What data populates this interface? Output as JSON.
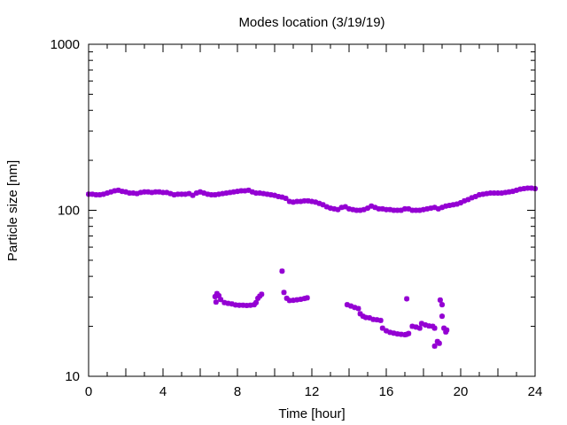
{
  "chart_data": {
    "type": "scatter",
    "title": "Modes location (3/19/19)",
    "xlabel": "Time [hour]",
    "ylabel": "Particle size [nm]",
    "xlim": [
      0,
      24
    ],
    "ylim": [
      10,
      1000
    ],
    "yscale": "log",
    "grid": false,
    "legend": "none",
    "marker": "asterisk",
    "color": "#9400d3",
    "x_ticks": [
      "0",
      "4",
      "8",
      "12",
      "16",
      "20",
      "24"
    ],
    "y_ticks": [
      "10",
      "100",
      "1000"
    ],
    "series": [
      {
        "points": [
          [
            0.0,
            125
          ],
          [
            0.2,
            125
          ],
          [
            0.4,
            124
          ],
          [
            0.6,
            124
          ],
          [
            0.8,
            125
          ],
          [
            1.0,
            127
          ],
          [
            1.2,
            129
          ],
          [
            1.4,
            131
          ],
          [
            1.6,
            132
          ],
          [
            1.8,
            130
          ],
          [
            2.0,
            129
          ],
          [
            2.2,
            127
          ],
          [
            2.4,
            127
          ],
          [
            2.6,
            126
          ],
          [
            2.8,
            128
          ],
          [
            3.0,
            129
          ],
          [
            3.2,
            129
          ],
          [
            3.4,
            128
          ],
          [
            3.6,
            129
          ],
          [
            3.8,
            129
          ],
          [
            4.0,
            128
          ],
          [
            4.2,
            128
          ],
          [
            4.4,
            126
          ],
          [
            4.6,
            124
          ],
          [
            4.8,
            125
          ],
          [
            5.0,
            125
          ],
          [
            5.2,
            125
          ],
          [
            5.4,
            126
          ],
          [
            5.6,
            123
          ],
          [
            5.8,
            127
          ],
          [
            6.0,
            129
          ],
          [
            6.2,
            127
          ],
          [
            6.4,
            125
          ],
          [
            6.6,
            124
          ],
          [
            6.8,
            124
          ],
          [
            7.0,
            125
          ],
          [
            7.2,
            126
          ],
          [
            7.4,
            127
          ],
          [
            7.6,
            128
          ],
          [
            7.8,
            129
          ],
          [
            8.0,
            130
          ],
          [
            8.2,
            131
          ],
          [
            8.4,
            131
          ],
          [
            8.6,
            132
          ],
          [
            8.8,
            129
          ],
          [
            9.0,
            127
          ],
          [
            9.2,
            127
          ],
          [
            9.4,
            126
          ],
          [
            9.6,
            125
          ],
          [
            9.8,
            124
          ],
          [
            10.0,
            123
          ],
          [
            10.2,
            121
          ],
          [
            10.4,
            120
          ],
          [
            10.6,
            118
          ],
          [
            10.8,
            113
          ],
          [
            11.0,
            112
          ],
          [
            11.2,
            113
          ],
          [
            11.4,
            113
          ],
          [
            11.6,
            114
          ],
          [
            11.8,
            114
          ],
          [
            12.0,
            113
          ],
          [
            12.2,
            112
          ],
          [
            12.4,
            110
          ],
          [
            12.6,
            108
          ],
          [
            12.8,
            105
          ],
          [
            13.0,
            103
          ],
          [
            13.2,
            102
          ],
          [
            13.4,
            101
          ],
          [
            13.6,
            104
          ],
          [
            13.8,
            105
          ],
          [
            14.0,
            102
          ],
          [
            14.2,
            101
          ],
          [
            14.4,
            100
          ],
          [
            14.6,
            100
          ],
          [
            14.8,
            101
          ],
          [
            15.0,
            103
          ],
          [
            15.2,
            106
          ],
          [
            15.4,
            104
          ],
          [
            15.6,
            102
          ],
          [
            15.8,
            102
          ],
          [
            16.0,
            101
          ],
          [
            16.2,
            101
          ],
          [
            16.4,
            100
          ],
          [
            16.6,
            100
          ],
          [
            16.8,
            100
          ],
          [
            17.0,
            102
          ],
          [
            17.2,
            102
          ],
          [
            17.4,
            100
          ],
          [
            17.6,
            100
          ],
          [
            17.8,
            100
          ],
          [
            18.0,
            101
          ],
          [
            18.2,
            102
          ],
          [
            18.4,
            103
          ],
          [
            18.6,
            104
          ],
          [
            18.8,
            102
          ],
          [
            19.0,
            104
          ],
          [
            19.2,
            106
          ],
          [
            19.4,
            107
          ],
          [
            19.6,
            108
          ],
          [
            19.8,
            109
          ],
          [
            20.0,
            111
          ],
          [
            20.2,
            114
          ],
          [
            20.4,
            116
          ],
          [
            20.6,
            119
          ],
          [
            20.8,
            121
          ],
          [
            21.0,
            124
          ],
          [
            21.2,
            125
          ],
          [
            21.4,
            126
          ],
          [
            21.6,
            127
          ],
          [
            21.8,
            127
          ],
          [
            22.0,
            127
          ],
          [
            22.2,
            127
          ],
          [
            22.4,
            128
          ],
          [
            22.6,
            129
          ],
          [
            22.8,
            130
          ],
          [
            23.0,
            132
          ],
          [
            23.2,
            134
          ],
          [
            23.4,
            135
          ],
          [
            23.6,
            136
          ],
          [
            23.8,
            136
          ],
          [
            24.0,
            135
          ],
          [
            6.8,
            30.2
          ],
          [
            6.9,
            31.5
          ],
          [
            7.0,
            30.6
          ],
          [
            6.85,
            28.0
          ],
          [
            7.1,
            29.0
          ],
          [
            7.3,
            27.8
          ],
          [
            7.5,
            27.5
          ],
          [
            7.7,
            27.3
          ],
          [
            7.9,
            26.9
          ],
          [
            8.1,
            26.8
          ],
          [
            8.3,
            26.8
          ],
          [
            8.5,
            26.7
          ],
          [
            8.7,
            26.8
          ],
          [
            8.9,
            27.0
          ],
          [
            9.0,
            27.8
          ],
          [
            9.1,
            29.5
          ],
          [
            9.2,
            30.4
          ],
          [
            9.3,
            31.2
          ],
          [
            10.4,
            43.0
          ],
          [
            10.5,
            32.0
          ],
          [
            10.65,
            29.5
          ],
          [
            10.8,
            28.6
          ],
          [
            11.0,
            28.7
          ],
          [
            11.2,
            28.9
          ],
          [
            11.4,
            29.1
          ],
          [
            11.6,
            29.4
          ],
          [
            11.75,
            29.7
          ],
          [
            13.9,
            27.0
          ],
          [
            14.1,
            26.5
          ],
          [
            14.3,
            26.0
          ],
          [
            14.5,
            25.6
          ],
          [
            14.6,
            23.8
          ],
          [
            14.75,
            23.0
          ],
          [
            14.9,
            22.6
          ],
          [
            15.1,
            22.5
          ],
          [
            15.3,
            22.0
          ],
          [
            15.5,
            21.9
          ],
          [
            15.7,
            21.7
          ],
          [
            15.8,
            19.5
          ],
          [
            16.0,
            18.8
          ],
          [
            16.2,
            18.4
          ],
          [
            16.4,
            18.2
          ],
          [
            16.6,
            18.0
          ],
          [
            16.8,
            17.9
          ],
          [
            17.0,
            17.8
          ],
          [
            17.1,
            17.9
          ],
          [
            17.2,
            18.1
          ],
          [
            17.1,
            29.3
          ],
          [
            17.4,
            20.0
          ],
          [
            17.6,
            19.8
          ],
          [
            17.8,
            19.5
          ],
          [
            17.9,
            20.8
          ],
          [
            18.1,
            20.4
          ],
          [
            18.3,
            20.1
          ],
          [
            18.5,
            20.0
          ],
          [
            18.6,
            19.5
          ],
          [
            18.6,
            15.2
          ],
          [
            18.75,
            16.2
          ],
          [
            18.85,
            15.8
          ],
          [
            18.9,
            28.8
          ],
          [
            19.0,
            27.0
          ],
          [
            19.0,
            23.0
          ],
          [
            19.1,
            19.5
          ],
          [
            19.2,
            18.5
          ],
          [
            19.25,
            19.0
          ]
        ]
      }
    ]
  }
}
